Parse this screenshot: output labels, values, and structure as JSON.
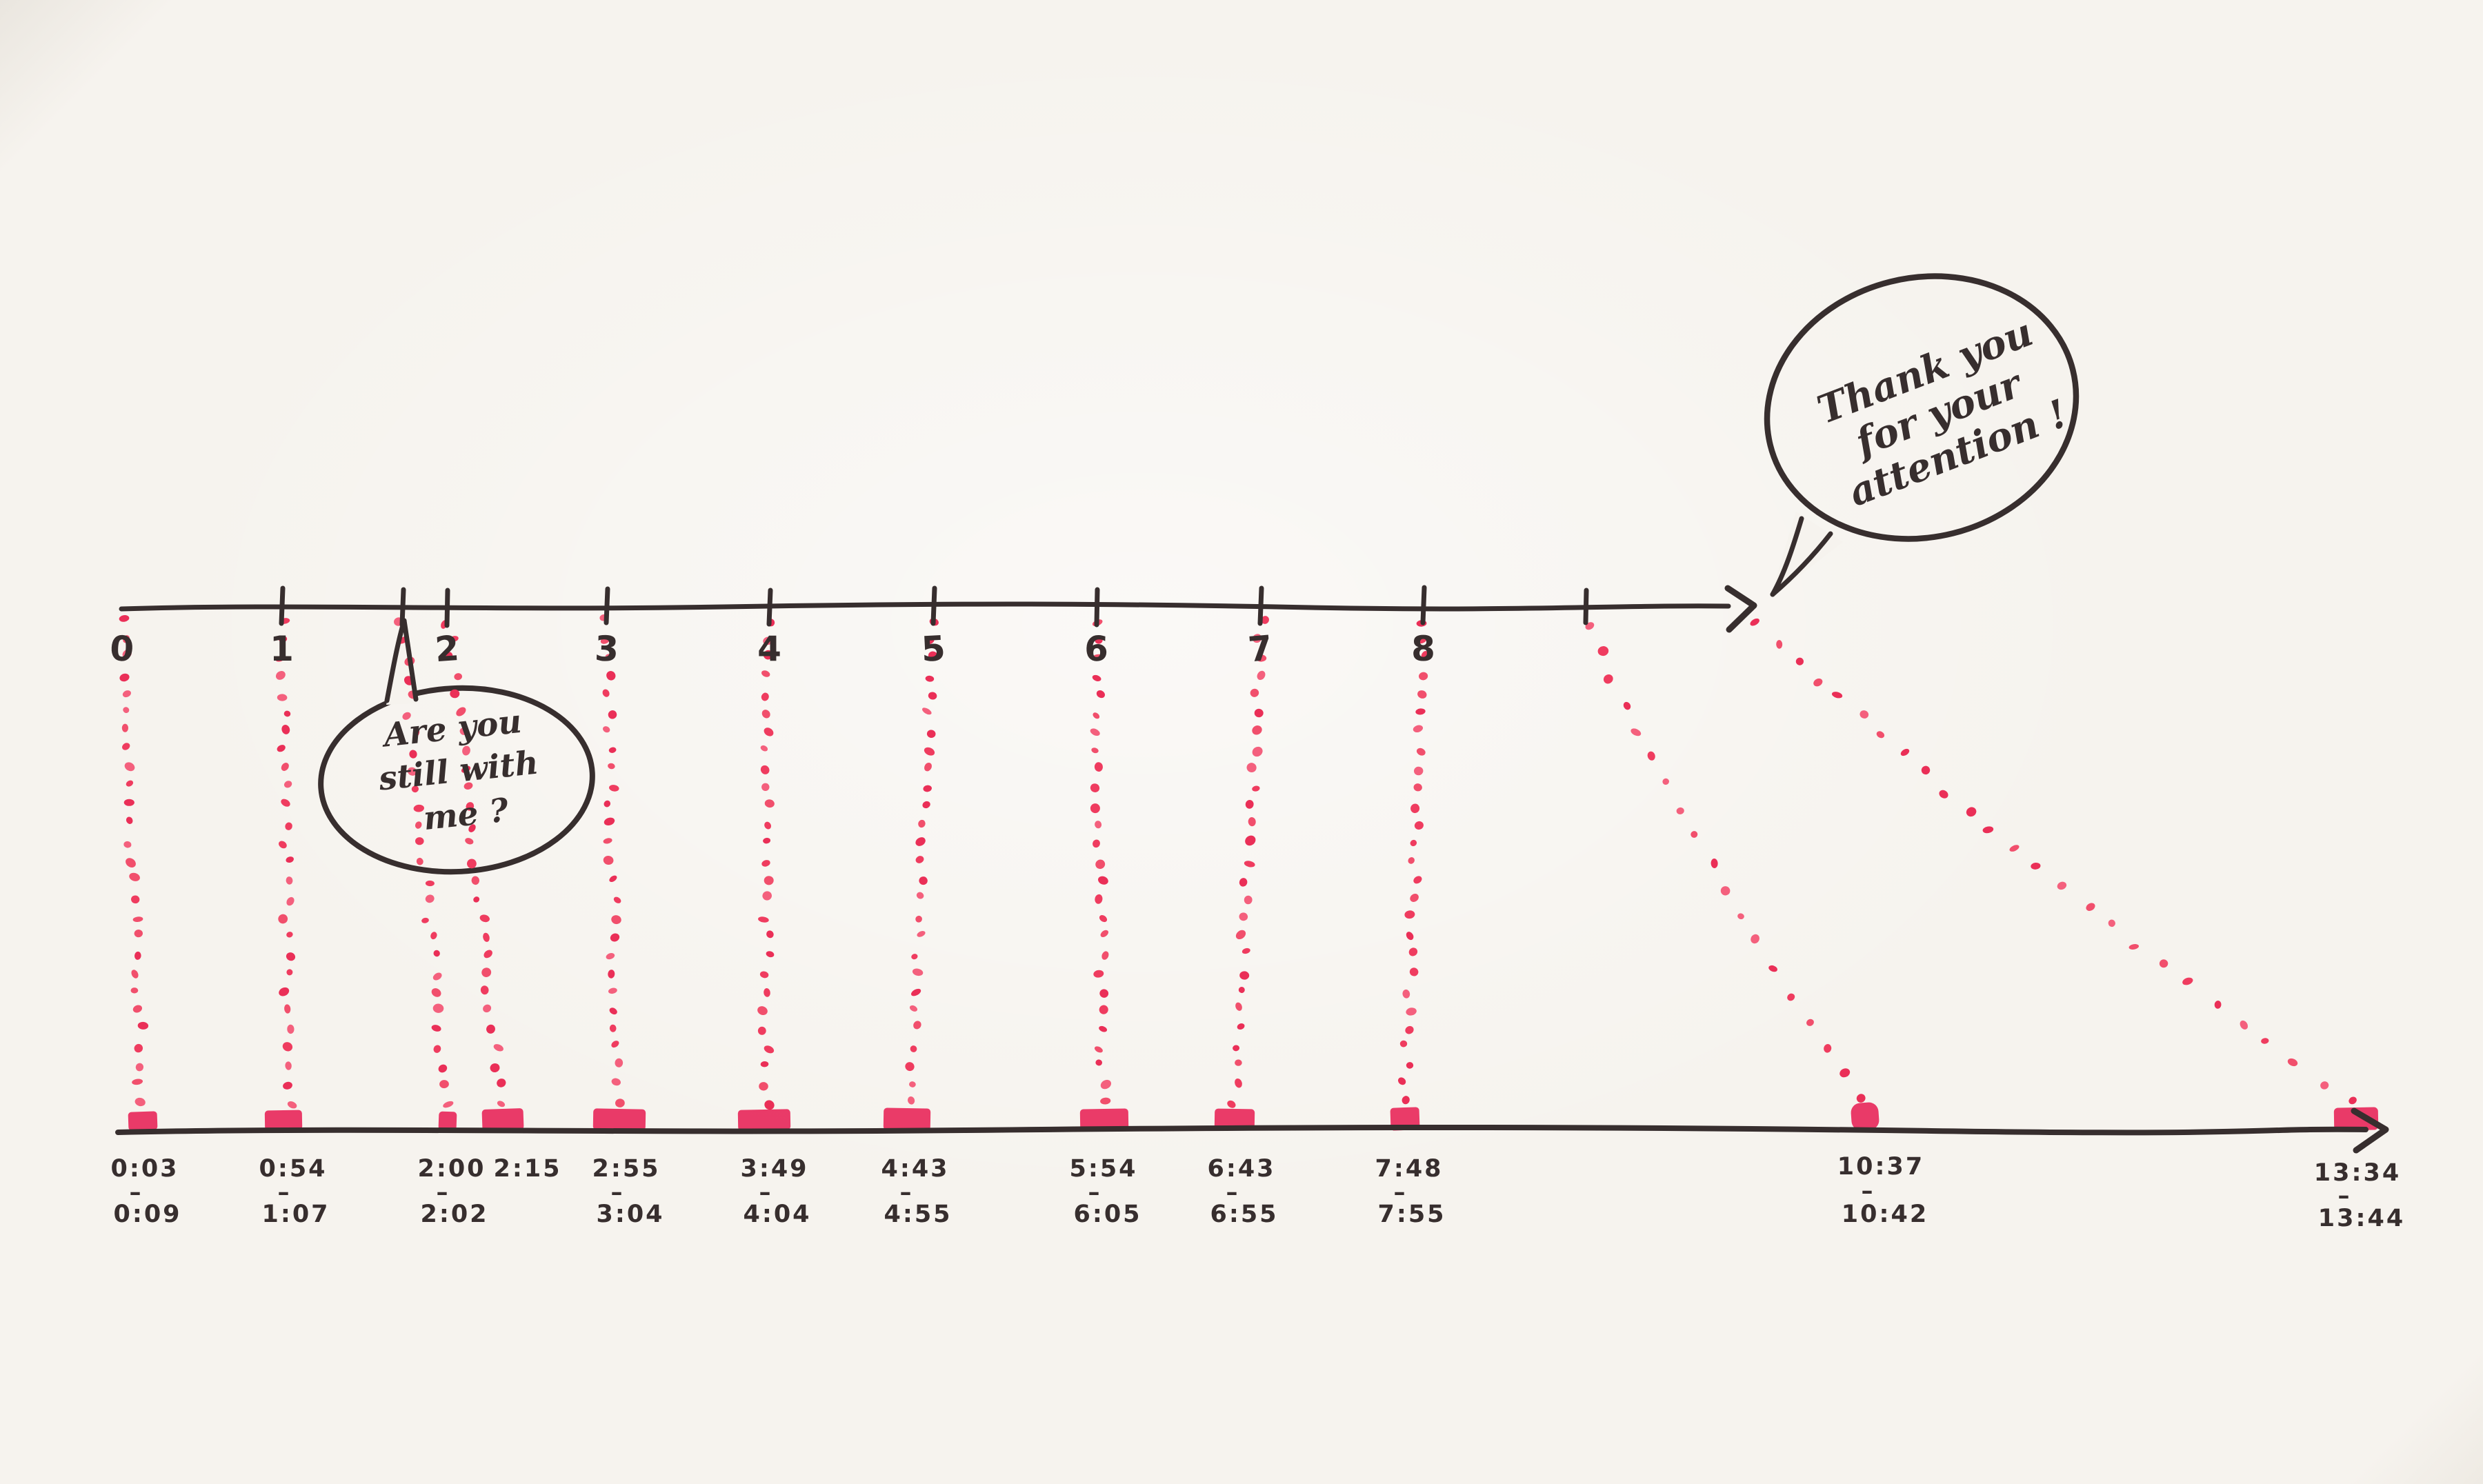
{
  "colors": {
    "paper": "#f6f3ee",
    "ink": "#372e2e",
    "highlight": "#f12e64",
    "dot_variants": [
      "#ef3c5f",
      "#f14f6c",
      "#ea2f57",
      "#f4607d"
    ]
  },
  "chart_data": {
    "type": "table",
    "title": "",
    "columns": [
      "top_axis_position",
      "time_range"
    ],
    "rows": [
      [
        "0",
        "0:03–0:09"
      ],
      [
        "1",
        "0:54–1:07"
      ],
      [
        "2 (left tick)",
        "2:00–2:02"
      ],
      [
        "2 (right tick)",
        "2:15"
      ],
      [
        "3",
        "2:55–3:04"
      ],
      [
        "4",
        "3:49–4:04"
      ],
      [
        "5",
        "4:43–4:55"
      ],
      [
        "6",
        "5:54–6:05"
      ],
      [
        "7",
        "6:43–6:55"
      ],
      [
        "8",
        "7:48–7:55"
      ],
      [
        "unlabeled tick",
        "10:37–10:42"
      ],
      [
        "axis arrow end",
        "13:34–13:44"
      ]
    ],
    "top_axis_tick_labels": [
      "0",
      "1",
      "2",
      "3",
      "4",
      "5",
      "6",
      "7",
      "8"
    ],
    "annotations": [
      "Are you still with me ?",
      "Thank you for your attention !"
    ],
    "legend_position": "none",
    "grid": false
  },
  "top_axis": {
    "tick_labels": [
      "0",
      "1",
      "2",
      "3",
      "4",
      "5",
      "6",
      "7",
      "8"
    ]
  },
  "bottom_axis": {
    "labels": [
      {
        "start": "0:03",
        "dash": "–",
        "end": "0:09"
      },
      {
        "start": "0:54",
        "dash": "–",
        "end": "1:07"
      },
      {
        "start": "2:00",
        "dash": "–",
        "end": "2:02"
      },
      {
        "start": "2:15",
        "dash": "",
        "end": ""
      },
      {
        "start": "2:55",
        "dash": "–",
        "end": "3:04"
      },
      {
        "start": "3:49",
        "dash": "–",
        "end": "4:04"
      },
      {
        "start": "4:43",
        "dash": "–",
        "end": "4:55"
      },
      {
        "start": "5:54",
        "dash": "–",
        "end": "6:05"
      },
      {
        "start": "6:43",
        "dash": "–",
        "end": "6:55"
      },
      {
        "start": "7:48",
        "dash": "–",
        "end": "7:55"
      },
      {
        "start": "10:37",
        "dash": "–",
        "end": "10:42"
      },
      {
        "start": "13:34",
        "dash": "–",
        "end": "13:44"
      }
    ]
  },
  "bubbles": {
    "question": {
      "lines": [
        "Are you",
        "still with",
        "me ?"
      ]
    },
    "thanks": {
      "lines": [
        "Thank you",
        "for your",
        "attention !"
      ]
    }
  }
}
